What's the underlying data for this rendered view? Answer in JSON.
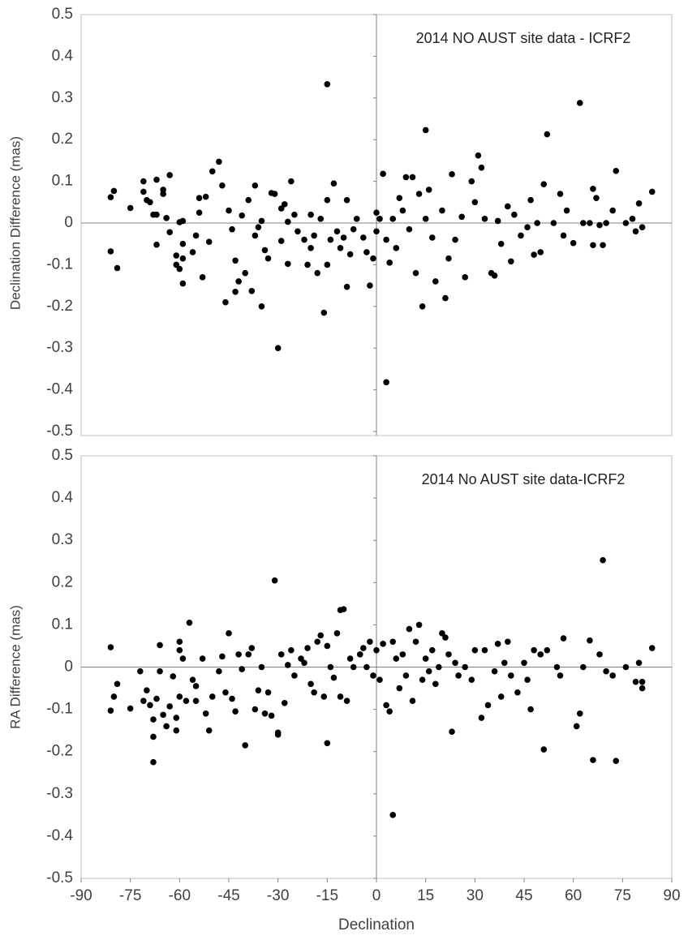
{
  "chart_data": [
    {
      "type": "scatter",
      "title": "2014 NO AUST site data - ICRF2",
      "y_label": "Declination Difference (mas)",
      "color": "#000000",
      "xlim": [
        -90,
        90
      ],
      "ylim": [
        -0.5,
        0.5
      ],
      "yticks": [
        0.5,
        0.4,
        0.3,
        0.2,
        0.1,
        0,
        -0.1,
        -0.2,
        -0.3,
        -0.4,
        -0.5
      ],
      "x": [
        -81,
        -80,
        -81,
        -79,
        -75,
        -71,
        -71,
        -70,
        -69,
        -68,
        -67,
        -67,
        -67,
        -65,
        -65,
        -64,
        -63,
        -63,
        -61,
        -61,
        -60,
        -60,
        -59,
        -59,
        -59,
        -59,
        -56,
        -55,
        -54,
        -54,
        -53,
        -52,
        -51,
        -50,
        -48,
        -47,
        -46,
        -45,
        -44,
        -43,
        -43,
        -42,
        -41,
        -40,
        -39,
        -38,
        -37,
        -37,
        -36,
        -35,
        -35,
        -34,
        -33,
        -32,
        -31,
        -30,
        -29,
        -29,
        -28,
        -27,
        -27,
        -26,
        -25,
        -24,
        -22,
        -21,
        -20,
        -20,
        -19,
        -18,
        -17,
        -16,
        -15,
        -15,
        -15,
        -14,
        -13,
        -12,
        -11,
        -10,
        -9,
        -9,
        -8,
        -7,
        -6,
        -4,
        -3,
        -2,
        -1,
        0,
        0,
        1,
        2,
        3,
        3,
        4,
        5,
        6,
        7,
        8,
        9,
        10,
        11,
        12,
        13,
        14,
        15,
        15,
        16,
        17,
        18,
        20,
        21,
        22,
        23,
        24,
        26,
        27,
        29,
        30,
        31,
        32,
        33,
        35,
        36,
        37,
        38,
        40,
        41,
        42,
        44,
        46,
        47,
        48,
        49,
        50,
        51,
        52,
        54,
        56,
        57,
        58,
        60,
        62,
        63,
        65,
        66,
        66,
        67,
        68,
        69,
        70,
        72,
        73,
        76,
        78,
        79,
        80,
        81,
        84
      ],
      "values": [
        0.062,
        0.077,
        -0.068,
        -0.108,
        0.036,
        0.1,
        0.075,
        0.055,
        0.05,
        0.02,
        0.104,
        0.02,
        -0.052,
        0.08,
        0.07,
        0.012,
        0.115,
        -0.022,
        -0.078,
        -0.1,
        -0.11,
        0.002,
        -0.145,
        -0.05,
        0.005,
        -0.085,
        -0.07,
        -0.03,
        0.06,
        0.025,
        -0.13,
        0.063,
        -0.045,
        0.124,
        0.147,
        0.09,
        -0.19,
        0.03,
        -0.015,
        -0.165,
        -0.09,
        -0.14,
        0.018,
        -0.12,
        0.055,
        -0.163,
        0.09,
        -0.03,
        -0.01,
        0.005,
        -0.2,
        -0.065,
        -0.085,
        0.072,
        0.07,
        -0.3,
        0.035,
        -0.043,
        0.045,
        -0.098,
        0.003,
        0.1,
        0.02,
        -0.02,
        -0.04,
        -0.1,
        0.02,
        -0.06,
        -0.03,
        -0.12,
        0.01,
        -0.215,
        -0.1,
        0.055,
        0.333,
        -0.04,
        0.095,
        -0.02,
        -0.06,
        -0.035,
        -0.153,
        0.055,
        -0.075,
        -0.015,
        0.01,
        -0.035,
        -0.07,
        -0.15,
        -0.085,
        0.025,
        -0.02,
        0.01,
        0.118,
        -0.382,
        -0.04,
        -0.095,
        0.01,
        -0.06,
        0.06,
        0.03,
        0.11,
        -0.015,
        0.11,
        -0.12,
        0.07,
        -0.2,
        0.223,
        0.01,
        0.08,
        -0.035,
        -0.14,
        0.03,
        -0.18,
        -0.085,
        0.117,
        -0.04,
        0.015,
        -0.13,
        0.1,
        0.05,
        0.162,
        0.133,
        0.01,
        -0.12,
        -0.126,
        0.005,
        -0.05,
        0.04,
        -0.092,
        0.02,
        -0.03,
        -0.01,
        0.055,
        -0.076,
        0,
        -0.07,
        0.093,
        0.213,
        0,
        0.07,
        -0.03,
        0.03,
        -0.048,
        0.288,
        0,
        0,
        0.082,
        -0.053,
        0.06,
        -0.005,
        -0.053,
        0,
        0.03,
        0.125,
        0,
        0.01,
        -0.02,
        0.047,
        -0.01,
        0.075
      ]
    },
    {
      "type": "scatter",
      "title": "2014 No AUST site data-ICRF2",
      "y_label": "RA Difference (mas)",
      "x_label": "Declination",
      "color": "#000000",
      "xlim": [
        -90,
        90
      ],
      "xticks": [
        -90,
        -75,
        -60,
        -45,
        -30,
        -15,
        0,
        15,
        30,
        45,
        60,
        75,
        90
      ],
      "ylim": [
        -0.5,
        0.5
      ],
      "yticks": [
        0.5,
        0.4,
        0.3,
        0.2,
        0.1,
        0,
        -0.1,
        -0.2,
        -0.3,
        -0.4,
        -0.5
      ],
      "x": [
        -81,
        -81,
        -80,
        -79,
        -75,
        -72,
        -71,
        -70,
        -69,
        -68,
        -68,
        -68,
        -67,
        -66,
        -66,
        -65,
        -64,
        -63,
        -62,
        -61,
        -61,
        -60,
        -60,
        -60,
        -59,
        -58,
        -57,
        -56,
        -55,
        -55,
        -53,
        -52,
        -51,
        -50,
        -48,
        -47,
        -46,
        -45,
        -44,
        -43,
        -42,
        -41,
        -40,
        -39,
        -38,
        -37,
        -36,
        -35,
        -34,
        -33,
        -32,
        -31,
        -30,
        -30,
        -29,
        -28,
        -27,
        -26,
        -25,
        -23,
        -22,
        -21,
        -20,
        -19,
        -18,
        -17,
        -16,
        -15,
        -15,
        -14,
        -13,
        -12,
        -11,
        -11,
        -10,
        -9,
        -8,
        -7,
        -5,
        -4,
        -3,
        -2,
        -1,
        0,
        1,
        2,
        3,
        4,
        5,
        5,
        6,
        7,
        8,
        9,
        10,
        11,
        12,
        13,
        14,
        15,
        16,
        17,
        18,
        19,
        20,
        21,
        22,
        23,
        24,
        25,
        27,
        29,
        30,
        32,
        33,
        34,
        36,
        37,
        38,
        39,
        40,
        41,
        43,
        45,
        46,
        47,
        48,
        50,
        51,
        52,
        55,
        56,
        57,
        61,
        62,
        63,
        65,
        66,
        68,
        69,
        70,
        72,
        73,
        76,
        79,
        80,
        81,
        81,
        84
      ],
      "values": [
        0.047,
        -0.103,
        -0.07,
        -0.04,
        -0.098,
        -0.01,
        -0.08,
        -0.055,
        -0.09,
        -0.124,
        -0.225,
        -0.165,
        -0.075,
        0.052,
        -0.01,
        -0.113,
        -0.14,
        -0.093,
        -0.022,
        -0.15,
        -0.12,
        0.06,
        0.04,
        -0.07,
        0.02,
        -0.08,
        0.105,
        -0.03,
        -0.08,
        -0.045,
        0.02,
        -0.11,
        -0.15,
        -0.07,
        -0.01,
        0.025,
        -0.06,
        0.08,
        -0.075,
        -0.105,
        0.03,
        -0.005,
        -0.185,
        0.03,
        0.045,
        -0.1,
        -0.055,
        0,
        -0.11,
        -0.06,
        -0.115,
        0.205,
        -0.155,
        -0.16,
        0.03,
        -0.085,
        0.005,
        0.04,
        -0.02,
        0.02,
        0.01,
        0.045,
        -0.04,
        -0.06,
        0.06,
        0.075,
        -0.07,
        -0.18,
        0.05,
        0,
        -0.025,
        0.08,
        -0.07,
        0.135,
        0.137,
        -0.08,
        0.02,
        0,
        0.03,
        0.045,
        0,
        0.06,
        -0.02,
        0.04,
        -0.03,
        0.055,
        -0.09,
        -0.105,
        -0.35,
        0.06,
        0.02,
        -0.05,
        0.03,
        -0.02,
        0.09,
        -0.08,
        0.06,
        0.1,
        -0.03,
        0.02,
        -0.01,
        0.04,
        -0.04,
        0,
        0.08,
        0.07,
        0.03,
        -0.153,
        0.01,
        -0.02,
        0,
        -0.03,
        0.04,
        -0.12,
        0.04,
        -0.09,
        -0.01,
        0.055,
        -0.07,
        0.01,
        0.06,
        -0.02,
        -0.06,
        0.01,
        -0.03,
        -0.1,
        0.04,
        0.03,
        -0.195,
        0.04,
        0,
        -0.02,
        0.068,
        -0.14,
        -0.11,
        0,
        0.063,
        -0.22,
        0.03,
        0.253,
        -0.01,
        -0.02,
        -0.222,
        0,
        -0.035,
        0.01,
        -0.05,
        -0.035,
        0.045
      ]
    }
  ]
}
